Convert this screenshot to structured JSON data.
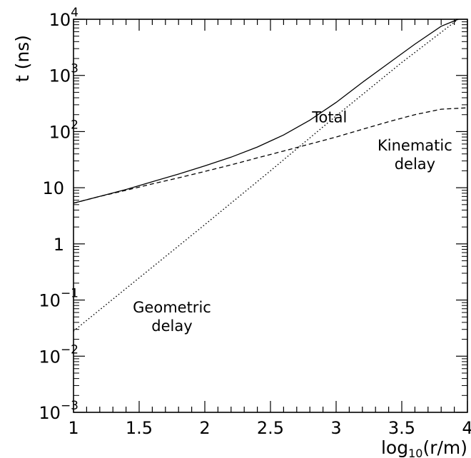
{
  "chart_data": {
    "type": "line",
    "xlabel": "log10(r/m)",
    "ylabel": "t (ns)",
    "x_scale": "linear",
    "y_scale": "log",
    "xlim": [
      1,
      4
    ],
    "ylim": [
      0.001,
      10000
    ],
    "grid": false,
    "x_ticks": [
      "1",
      "1.5",
      "2",
      "2.5",
      "3",
      "3.5",
      "4"
    ],
    "y_ticks": [
      {
        "value": 0.001,
        "base": "10",
        "exp": "−3"
      },
      {
        "value": 0.01,
        "base": "10",
        "exp": "−2"
      },
      {
        "value": 0.1,
        "base": "10",
        "exp": "−1"
      },
      {
        "value": 1,
        "base": "1",
        "exp": ""
      },
      {
        "value": 10,
        "base": "10",
        "exp": ""
      },
      {
        "value": 100,
        "base": "10",
        "exp": "2"
      },
      {
        "value": 1000,
        "base": "10",
        "exp": "3"
      },
      {
        "value": 10000,
        "base": "10",
        "exp": "4"
      }
    ],
    "series": [
      {
        "style": "solid",
        "x": [
          1.0,
          1.2,
          1.4,
          1.6,
          1.8,
          2.0,
          2.2,
          2.4,
          2.6,
          2.8,
          3.0,
          3.2,
          3.4,
          3.6,
          3.8,
          3.93
        ],
        "y": [
          5.3,
          7.0,
          9.3,
          12.8,
          17.5,
          24.5,
          35.0,
          53,
          87,
          160,
          330,
          750,
          1650,
          3600,
          7500,
          10000
        ]
      },
      {
        "style": "dashed",
        "x": [
          1.0,
          1.2,
          1.4,
          1.6,
          1.8,
          2.0,
          2.2,
          2.4,
          2.6,
          2.8,
          3.0,
          3.2,
          3.4,
          3.6,
          3.8,
          4.0
        ],
        "y": [
          5.3,
          7.0,
          9.0,
          11.7,
          15.0,
          19.5,
          25.5,
          34,
          45,
          60,
          80,
          110,
          150,
          200,
          250,
          265
        ]
      },
      {
        "style": "dotted",
        "x": [
          1.0,
          2.0,
          2.5,
          3.0,
          3.5,
          3.93
        ],
        "y": [
          0.028,
          2.2,
          20,
          190,
          1700,
          10000
        ]
      }
    ],
    "annotations": [
      {
        "lines": [
          "Total"
        ],
        "x": 2.95,
        "y": 145
      },
      {
        "lines": [
          "Kinematic",
          "delay"
        ],
        "x": 3.6,
        "y": 46
      },
      {
        "lines": [
          "Geometric",
          "delay"
        ],
        "x": 1.75,
        "y": 0.06
      }
    ]
  }
}
